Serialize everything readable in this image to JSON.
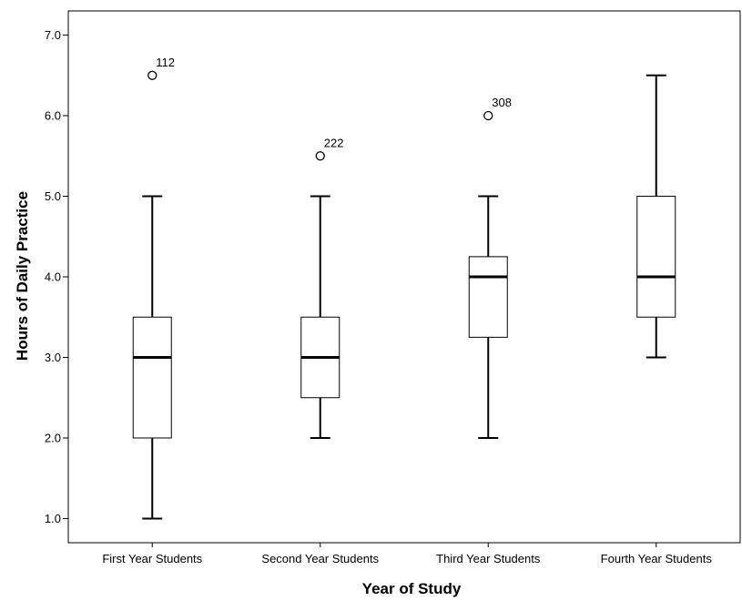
{
  "chart_data": {
    "type": "boxplot",
    "xlabel": "Year of Study",
    "ylabel": "Hours of Daily Practice",
    "ylim": [
      0.7,
      7.3
    ],
    "yticks": [
      "1.0",
      "2.0",
      "3.0",
      "4.0",
      "5.0",
      "6.0",
      "7.0"
    ],
    "grid": false,
    "categories": [
      "First Year Students",
      "Second Year Students",
      "Third Year Students",
      "Fourth Year Students"
    ],
    "boxes": [
      {
        "min": 1.0,
        "q1": 2.0,
        "median": 3.0,
        "q3": 3.5,
        "max": 5.0,
        "outliers": [
          {
            "value": 6.5,
            "label": "112"
          }
        ]
      },
      {
        "min": 2.0,
        "q1": 2.5,
        "median": 3.0,
        "q3": 3.5,
        "max": 5.0,
        "outliers": [
          {
            "value": 5.5,
            "label": "222"
          }
        ]
      },
      {
        "min": 2.0,
        "q1": 3.25,
        "median": 4.0,
        "q3": 4.25,
        "max": 5.0,
        "outliers": [
          {
            "value": 6.0,
            "label": "308"
          }
        ]
      },
      {
        "min": 3.0,
        "q1": 3.5,
        "median": 4.0,
        "q3": 5.0,
        "max": 6.5,
        "outliers": []
      }
    ]
  }
}
